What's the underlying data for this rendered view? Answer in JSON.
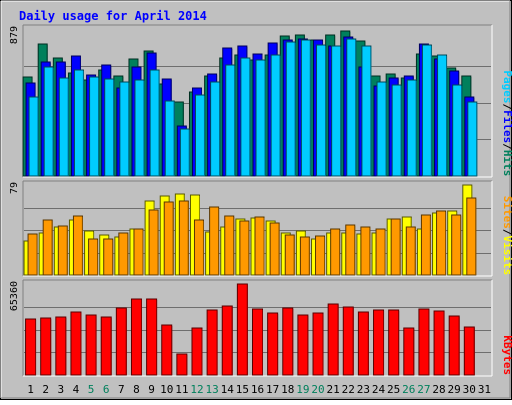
{
  "chart_data": {
    "type": "bar",
    "title": "Daily usage for April 2014",
    "days": [
      {
        "label": "1",
        "weekend": false
      },
      {
        "label": "2",
        "weekend": false
      },
      {
        "label": "3",
        "weekend": false
      },
      {
        "label": "4",
        "weekend": false
      },
      {
        "label": "5",
        "weekend": true
      },
      {
        "label": "6",
        "weekend": true
      },
      {
        "label": "7",
        "weekend": false
      },
      {
        "label": "8",
        "weekend": false
      },
      {
        "label": "9",
        "weekend": false
      },
      {
        "label": "10",
        "weekend": false
      },
      {
        "label": "11",
        "weekend": false
      },
      {
        "label": "12",
        "weekend": true
      },
      {
        "label": "13",
        "weekend": true
      },
      {
        "label": "14",
        "weekend": false
      },
      {
        "label": "15",
        "weekend": false
      },
      {
        "label": "16",
        "weekend": false
      },
      {
        "label": "17",
        "weekend": false
      },
      {
        "label": "18",
        "weekend": false
      },
      {
        "label": "19",
        "weekend": true
      },
      {
        "label": "20",
        "weekend": true
      },
      {
        "label": "21",
        "weekend": false
      },
      {
        "label": "22",
        "weekend": false
      },
      {
        "label": "23",
        "weekend": false
      },
      {
        "label": "24",
        "weekend": false
      },
      {
        "label": "25",
        "weekend": false
      },
      {
        "label": "26",
        "weekend": true
      },
      {
        "label": "27",
        "weekend": true
      },
      {
        "label": "28",
        "weekend": false
      },
      {
        "label": "29",
        "weekend": false
      },
      {
        "label": "30",
        "weekend": false
      },
      {
        "label": "31",
        "weekend": false
      }
    ],
    "panels": [
      {
        "id": "hits-files-pages",
        "ymax_label": "879",
        "ymax": 879,
        "legend": [
          "Pages",
          "Files",
          "Hits"
        ],
        "legend_colors": [
          "#00ccff",
          "#0000ff",
          "#00805c"
        ],
        "series": [
          {
            "name": "Hits",
            "color": "#00805c",
            "values": [
              592,
              787,
              703,
              617,
              574,
              632,
              596,
              701,
              747,
              550,
              442,
              502,
              595,
              706,
              721,
              694,
              724,
              836,
              844,
              812,
              842,
              865,
              810,
              596,
              608,
              588,
              727,
              718,
              648,
              596,
              0
            ]
          },
          {
            "name": "Files",
            "color": "#0000ff",
            "values": [
              557,
              679,
              681,
              717,
              604,
              663,
              528,
              652,
              736,
              581,
              298,
              526,
              611,
              766,
              778,
              727,
              797,
              813,
              819,
              812,
              780,
              830,
              652,
              541,
              585,
              598,
              787,
              697,
              626,
              470,
              0
            ]
          },
          {
            "name": "Pages",
            "color": "#00ccff",
            "values": [
              471,
              649,
              585,
              633,
              594,
              581,
              560,
              575,
              636,
              447,
              282,
              483,
              565,
              664,
              708,
              692,
              721,
              801,
              813,
              784,
              777,
              817,
              777,
              561,
              547,
              575,
              786,
              721,
              546,
              441,
              0
            ]
          }
        ]
      },
      {
        "id": "sites-visits",
        "ymax_label": "79",
        "ymax": 79,
        "legend": [
          "Sites",
          "Visits"
        ],
        "legend_colors": [
          "#ff9900",
          "#ffff00"
        ],
        "series": [
          {
            "name": "Visits",
            "color": "#ffff00",
            "values": [
              30,
              37,
              42,
              48,
              39,
              35,
              33,
              40,
              65,
              69,
              71,
              70,
              38,
              42,
              49,
              50,
              47,
              37,
              39,
              32,
              37,
              37,
              36,
              37,
              49,
              51,
              40,
              54,
              56,
              79,
              0
            ]
          },
          {
            "name": "Sites",
            "color": "#ff9900",
            "values": [
              36,
              48,
              43,
              52,
              32,
              32,
              37,
              40,
              57,
              64,
              65,
              48,
              60,
              52,
              47,
              51,
              46,
              35,
              33,
              34,
              40,
              44,
              42,
              40,
              49,
              42,
              53,
              56,
              53,
              68,
              0
            ]
          }
        ]
      },
      {
        "id": "kbytes",
        "ymax_label": "65360",
        "ymax": 65360,
        "legend": [
          "KBytes"
        ],
        "legend_colors": [
          "#ff0000"
        ],
        "series": [
          {
            "name": "KBytes",
            "color": "#ff0000",
            "values": [
              40000,
              40650,
              41510,
              45290,
              43210,
              41500,
              48270,
              54700,
              54330,
              35950,
              15290,
              33830,
              46700,
              49790,
              65360,
              47760,
              44670,
              48130,
              42770,
              44540,
              50940,
              48750,
              45180,
              46840,
              46560,
              33910,
              47580,
              45950,
              42020,
              34280,
              0
            ]
          }
        ]
      }
    ]
  }
}
